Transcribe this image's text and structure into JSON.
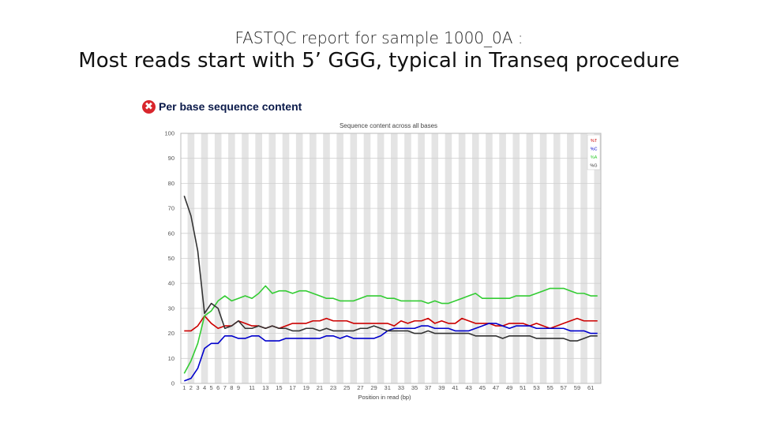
{
  "slide": {
    "subtitle": "FASTQC report for sample 1000_0A :",
    "title": "Most reads start with 5’ GGG, typical in Transeq procedure"
  },
  "report": {
    "status_icon": "fail-icon",
    "status_glyph": "✖",
    "title": "Per base sequence content"
  },
  "chart_data": {
    "type": "line",
    "title": "Sequence content across all bases",
    "xlabel": "Position in read (bp)",
    "ylabel": "",
    "ylim": [
      0,
      100
    ],
    "yticks": [
      0,
      10,
      20,
      30,
      40,
      50,
      60,
      70,
      80,
      90,
      100
    ],
    "x": [
      1,
      2,
      3,
      4,
      5,
      6,
      7,
      8,
      9,
      10,
      11,
      12,
      13,
      14,
      15,
      16,
      17,
      18,
      19,
      20,
      21,
      22,
      23,
      24,
      25,
      26,
      27,
      28,
      29,
      30,
      31,
      32,
      33,
      34,
      35,
      36,
      37,
      38,
      39,
      40,
      41,
      42,
      43,
      44,
      45,
      46,
      47,
      48,
      49,
      50,
      51,
      52,
      53,
      54,
      55,
      56,
      57,
      58,
      59,
      60,
      61,
      62
    ],
    "xticks": [
      "1",
      "2",
      "3",
      "4",
      "5",
      "6",
      "7",
      "8",
      "9",
      "11",
      "13",
      "15",
      "17",
      "19",
      "21",
      "23",
      "25",
      "27",
      "29",
      "31",
      "33",
      "35",
      "37",
      "39",
      "41",
      "43",
      "45",
      "47",
      "49",
      "51",
      "53",
      "55",
      "57",
      "59",
      "61"
    ],
    "legend_position": "top-right",
    "grid": "alternating vertical bands",
    "series": [
      {
        "name": "%T",
        "color": "#cc0000",
        "values": [
          21,
          21,
          23,
          27,
          24,
          22,
          23,
          23,
          25,
          24,
          23,
          23,
          22,
          23,
          22,
          23,
          24,
          24,
          24,
          25,
          25,
          26,
          25,
          25,
          25,
          24,
          24,
          24,
          24,
          24,
          24,
          23,
          25,
          24,
          25,
          25,
          26,
          24,
          25,
          24,
          24,
          26,
          25,
          24,
          24,
          24,
          23,
          23,
          24,
          24,
          24,
          23,
          24,
          23,
          22,
          23,
          24,
          25,
          26,
          25,
          25,
          25
        ]
      },
      {
        "name": "%C",
        "color": "#0000cc",
        "values": [
          1,
          2,
          6,
          14,
          16,
          16,
          19,
          19,
          18,
          18,
          19,
          19,
          17,
          17,
          17,
          18,
          18,
          18,
          18,
          18,
          18,
          19,
          19,
          18,
          19,
          18,
          18,
          18,
          18,
          19,
          21,
          22,
          22,
          22,
          22,
          23,
          23,
          22,
          22,
          22,
          21,
          21,
          21,
          22,
          23,
          24,
          24,
          23,
          22,
          23,
          23,
          23,
          22,
          22,
          22,
          22,
          22,
          21,
          21,
          21,
          20,
          20
        ]
      },
      {
        "name": "%A",
        "color": "#33cc33",
        "values": [
          4,
          9,
          16,
          27,
          29,
          33,
          35,
          33,
          34,
          35,
          34,
          36,
          39,
          36,
          37,
          37,
          36,
          37,
          37,
          36,
          35,
          34,
          34,
          33,
          33,
          33,
          34,
          35,
          35,
          35,
          34,
          34,
          33,
          33,
          33,
          33,
          32,
          33,
          32,
          32,
          33,
          34,
          35,
          36,
          34,
          34,
          34,
          34,
          34,
          35,
          35,
          35,
          36,
          37,
          38,
          38,
          38,
          37,
          36,
          36,
          35,
          35
        ]
      },
      {
        "name": "%G",
        "color": "#333333",
        "values": [
          75,
          67,
          53,
          28,
          32,
          30,
          22,
          23,
          25,
          22,
          22,
          23,
          22,
          23,
          22,
          22,
          21,
          21,
          22,
          22,
          21,
          22,
          21,
          21,
          21,
          21,
          22,
          22,
          23,
          22,
          21,
          21,
          21,
          21,
          20,
          20,
          21,
          20,
          20,
          20,
          20,
          20,
          20,
          19,
          19,
          19,
          19,
          18,
          19,
          19,
          19,
          19,
          18,
          18,
          18,
          18,
          18,
          17,
          17,
          18,
          19,
          19
        ]
      }
    ]
  }
}
